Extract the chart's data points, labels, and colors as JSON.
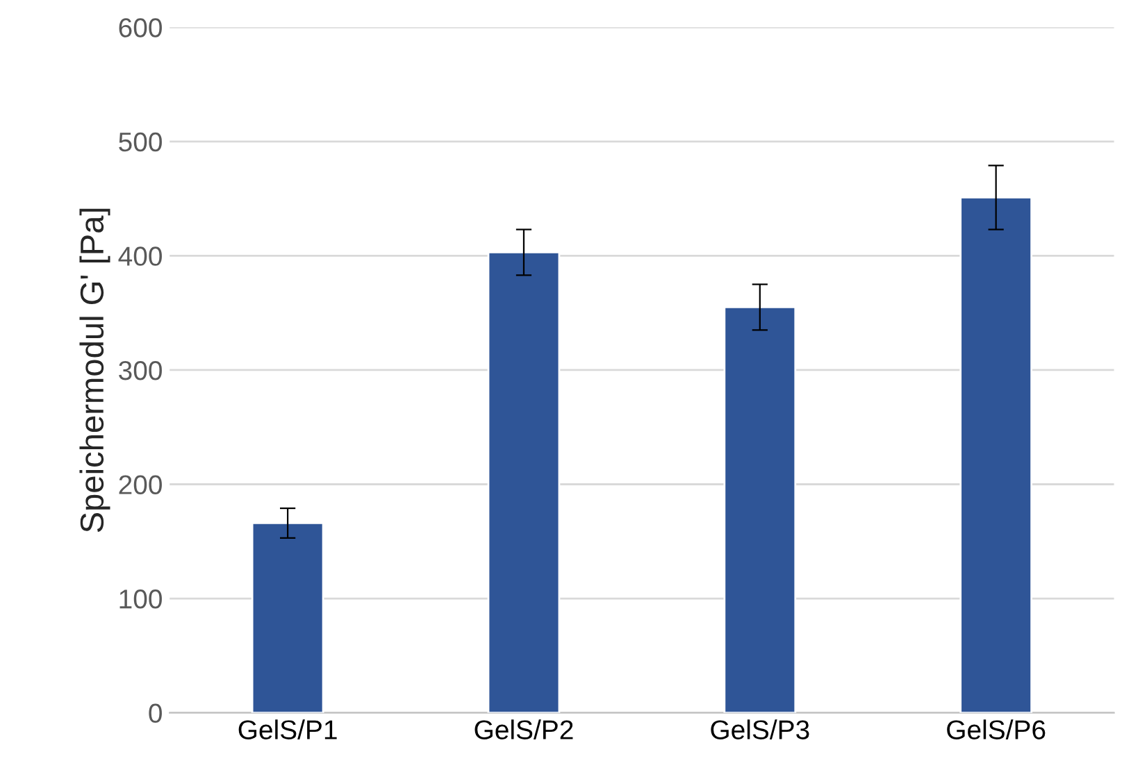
{
  "chart_data": {
    "type": "bar",
    "ylabel": "Speichermodul G' [Pa]",
    "categories": [
      "GelS/P1",
      "GelS/P2",
      "GelS/P3",
      "GelS/P6"
    ],
    "values": [
      166,
      403,
      355,
      451
    ],
    "errors": [
      13,
      20,
      20,
      28
    ],
    "color": "#2f5597",
    "ylim": [
      0,
      600
    ],
    "yticks": [
      0,
      100,
      200,
      300,
      400,
      500,
      600
    ],
    "grid": "y",
    "legend": false
  }
}
